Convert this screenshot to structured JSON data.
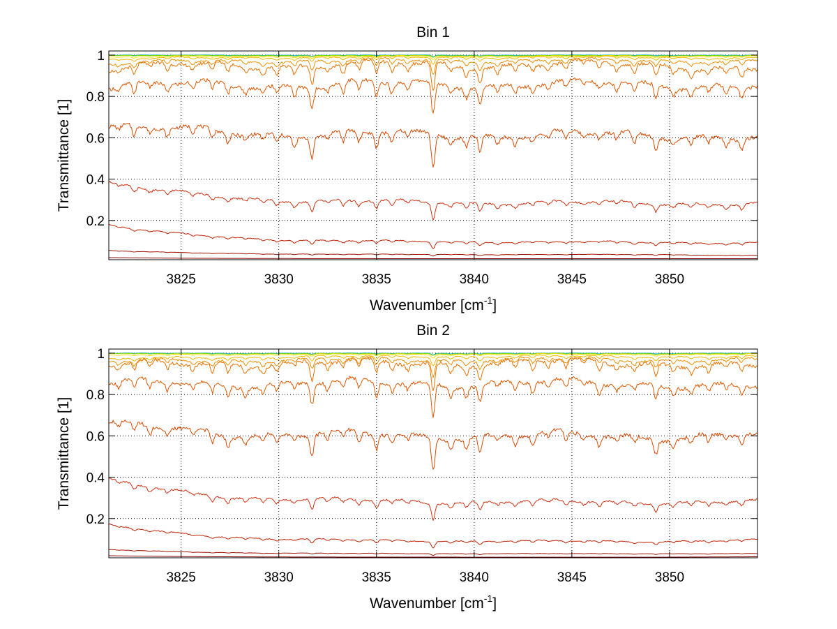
{
  "chart_data": [
    {
      "type": "line",
      "title": "Bin 1",
      "xlabel": "Wavenumber [cm",
      "xlabel_sup": "-1",
      "xlabel_end": "]",
      "ylabel": "Transmittance [1]",
      "xlim": [
        3821.3,
        3854.5
      ],
      "ylim": [
        0.01,
        1.02
      ],
      "xticks": [
        3825,
        3830,
        3835,
        3840,
        3845,
        3850
      ],
      "yticks": [
        0.2,
        0.4,
        0.6,
        0.8,
        1
      ],
      "xtick_labels": [
        "3825",
        "3830",
        "3835",
        "3840",
        "3845",
        "3850"
      ],
      "ytick_labels": [
        "0.2",
        "0.4",
        "0.6",
        "0.8",
        "1"
      ],
      "grid": true,
      "series": [
        {
          "color": "#00b4d8",
          "base": 1.0,
          "start": 1.0,
          "end": 1.0,
          "depth": 0.005
        },
        {
          "color": "#8ad400",
          "base": 0.998,
          "start": 0.998,
          "end": 0.998,
          "depth": 0.005
        },
        {
          "color": "#ffe000",
          "base": 0.995,
          "start": 0.99,
          "end": 0.995,
          "depth": 0.01
        },
        {
          "color": "#f5b800",
          "base": 0.99,
          "start": 0.98,
          "end": 0.985,
          "depth": 0.02
        },
        {
          "color": "#f09000",
          "base": 0.975,
          "start": 0.96,
          "end": 0.97,
          "depth": 0.045
        },
        {
          "color": "#ea7000",
          "base": 0.955,
          "start": 0.94,
          "end": 0.93,
          "depth": 0.09
        },
        {
          "color": "#e05800",
          "base": 0.86,
          "start": 0.85,
          "end": 0.85,
          "depth": 0.1
        },
        {
          "color": "#d84800",
          "base": 0.615,
          "start": 0.66,
          "end": 0.6,
          "depth": 0.1
        },
        {
          "color": "#d03010",
          "base": 0.285,
          "start": 0.385,
          "end": 0.28,
          "depth": 0.05
        },
        {
          "color": "#c02000",
          "base": 0.095,
          "start": 0.18,
          "end": 0.09,
          "depth": 0.02
        },
        {
          "color": "#a01000",
          "base": 0.035,
          "start": 0.055,
          "end": 0.03,
          "depth": 0.005
        },
        {
          "color": "#800000",
          "base": 0.015,
          "start": 0.02,
          "end": 0.015,
          "depth": 0.0
        }
      ]
    },
    {
      "type": "line",
      "title": "Bin 2",
      "xlabel": "Wavenumber [cm",
      "xlabel_sup": "-1",
      "xlabel_end": "]",
      "ylabel": "Transmittance [1]",
      "xlim": [
        3821.3,
        3854.5
      ],
      "ylim": [
        0.01,
        1.02
      ],
      "xticks": [
        3825,
        3830,
        3835,
        3840,
        3845,
        3850
      ],
      "yticks": [
        0.2,
        0.4,
        0.6,
        0.8,
        1
      ],
      "xtick_labels": [
        "3825",
        "3830",
        "3835",
        "3840",
        "3845",
        "3850"
      ],
      "ytick_labels": [
        "0.2",
        "0.4",
        "0.6",
        "0.8",
        "1"
      ],
      "grid": true,
      "series": [
        {
          "color": "#00b4d8",
          "base": 1.0,
          "start": 1.0,
          "end": 1.0,
          "depth": 0.005
        },
        {
          "color": "#8ad400",
          "base": 0.998,
          "start": 0.998,
          "end": 0.998,
          "depth": 0.005
        },
        {
          "color": "#ffe000",
          "base": 0.995,
          "start": 0.99,
          "end": 0.995,
          "depth": 0.01
        },
        {
          "color": "#f5b800",
          "base": 0.985,
          "start": 0.97,
          "end": 0.98,
          "depth": 0.025
        },
        {
          "color": "#f09000",
          "base": 0.97,
          "start": 0.955,
          "end": 0.965,
          "depth": 0.05
        },
        {
          "color": "#ea7000",
          "base": 0.955,
          "start": 0.94,
          "end": 0.93,
          "depth": 0.09
        },
        {
          "color": "#e05800",
          "base": 0.855,
          "start": 0.85,
          "end": 0.83,
          "depth": 0.1
        },
        {
          "color": "#d84800",
          "base": 0.6,
          "start": 0.66,
          "end": 0.6,
          "depth": 0.1
        },
        {
          "color": "#d03010",
          "base": 0.28,
          "start": 0.385,
          "end": 0.28,
          "depth": 0.05
        },
        {
          "color": "#c02000",
          "base": 0.09,
          "start": 0.17,
          "end": 0.095,
          "depth": 0.02
        },
        {
          "color": "#a01000",
          "base": 0.03,
          "start": 0.05,
          "end": 0.03,
          "depth": 0.005
        },
        {
          "color": "#800000",
          "base": 0.013,
          "start": 0.02,
          "end": 0.015,
          "depth": 0.0
        }
      ]
    }
  ]
}
